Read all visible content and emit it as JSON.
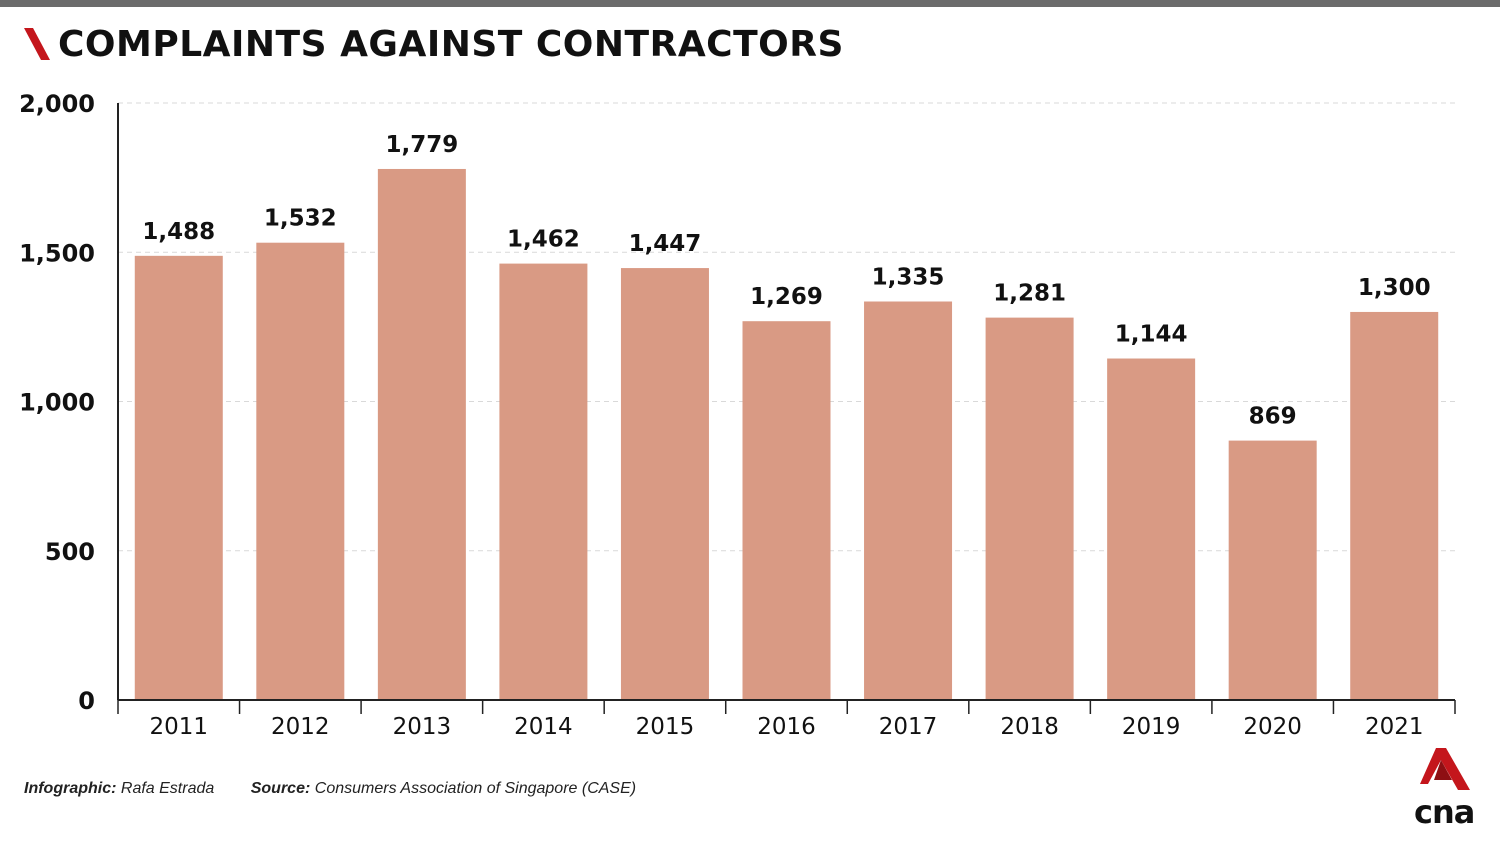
{
  "header": {
    "title": "COMPLAINTS AGAINST CONTRACTORS"
  },
  "footer": {
    "credit_label": "Infographic:",
    "credit_name": "Rafa Estrada",
    "source_label": "Source:",
    "source_name": "Consumers Association of Singapore (CASE)"
  },
  "logo": {
    "text": "cna"
  },
  "colors": {
    "bar": "#d99a84",
    "accent": "#c4161c",
    "grid": "#d9d9d9",
    "axis": "#222222"
  },
  "chart_data": {
    "type": "bar",
    "title": "COMPLAINTS AGAINST CONTRACTORS",
    "xlabel": "",
    "ylabel": "",
    "categories": [
      "2011",
      "2012",
      "2013",
      "2014",
      "2015",
      "2016",
      "2017",
      "2018",
      "2019",
      "2020",
      "2021"
    ],
    "values": [
      1488,
      1532,
      1779,
      1462,
      1447,
      1269,
      1335,
      1281,
      1144,
      869,
      1300
    ],
    "value_labels": [
      "1,488",
      "1,532",
      "1,779",
      "1,462",
      "1,447",
      "1,269",
      "1,335",
      "1,281",
      "1,144",
      "869",
      "1,300"
    ],
    "ylim": [
      0,
      2000
    ],
    "yticks": [
      0,
      500,
      1000,
      1500,
      2000
    ],
    "ytick_labels": [
      "0",
      "500",
      "1,000",
      "1,500",
      "2,000"
    ],
    "grid": true,
    "legend": "none"
  }
}
